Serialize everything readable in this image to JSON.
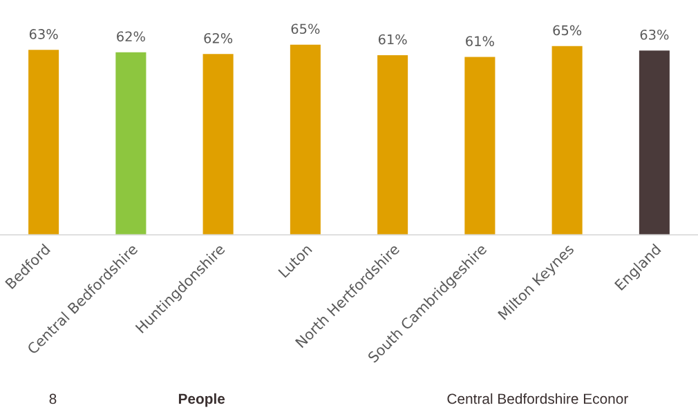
{
  "chart_data": {
    "type": "bar",
    "categories": [
      "Bedford",
      "Central Bedfordshire",
      "Huntingdonshire",
      "Luton",
      "North Hertfordshire",
      "South Cambridgeshire",
      "Milton Keynes",
      "England"
    ],
    "values": [
      63.2,
      62.4,
      61.8,
      65.0,
      61.4,
      60.8,
      64.5,
      63.0
    ],
    "value_labels": [
      "63%",
      "62%",
      "62%",
      "65%",
      "61%",
      "61%",
      "65%",
      "63%"
    ],
    "colors": [
      "#e0a000",
      "#8dc63f",
      "#e0a000",
      "#e0a000",
      "#e0a000",
      "#e0a000",
      "#e0a000",
      "#4a3a3a"
    ],
    "tick_labels": "x",
    "grid": false,
    "legend": false,
    "annotations": [
      "8",
      "People",
      "Central Bedfordshire Econor"
    ]
  }
}
